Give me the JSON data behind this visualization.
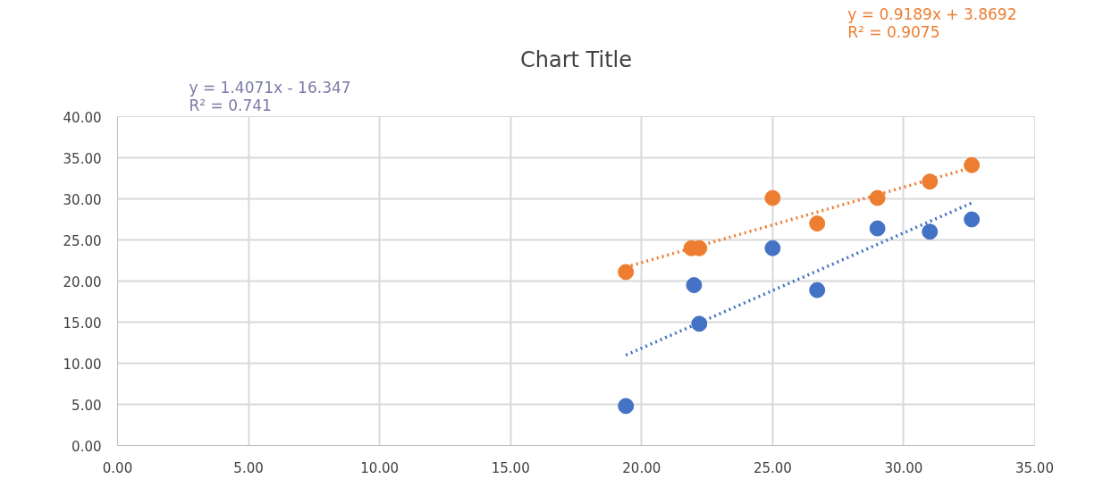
{
  "chart_data": {
    "type": "scatter",
    "title": "Chart Title",
    "annotations": [
      "y = 1.4071x - 16.347\nR² = 0.741",
      "y = 0.9189x + 3.8692\nR² = 0.9075"
    ],
    "series": [
      {
        "color": "#4472c4",
        "x": [
          19.4,
          22.0,
          22.2,
          25.0,
          26.7,
          29.0,
          31.0,
          32.6
        ],
        "values": [
          4.8,
          19.5,
          14.8,
          24.0,
          18.9,
          26.4,
          26.0,
          27.5
        ]
      },
      {
        "color": "#ed7d31",
        "x": [
          19.4,
          21.9,
          22.2,
          25.0,
          26.7,
          29.0,
          31.0,
          32.6
        ],
        "values": [
          21.1,
          24.0,
          24.0,
          30.1,
          27.0,
          30.1,
          32.1,
          34.1
        ]
      },
      {
        "type": "line",
        "color": "#4472c4",
        "line_style": "dotted",
        "marker": "none",
        "x": [
          19.4,
          32.6
        ],
        "values": [
          11.0,
          29.5
        ]
      },
      {
        "type": "line",
        "color": "#ed7d31",
        "line_style": "dotted",
        "marker": "none",
        "x": [
          19.4,
          32.6
        ],
        "values": [
          21.7,
          33.8
        ]
      }
    ],
    "marker": "circle",
    "grid": true,
    "xlim": [
      0,
      35
    ],
    "ylim": [
      0,
      40
    ],
    "xticks": [
      {
        "value": 0,
        "label": "0.00"
      },
      {
        "value": 5,
        "label": "5.00"
      },
      {
        "value": 10,
        "label": "10.00"
      },
      {
        "value": 15,
        "label": "15.00"
      },
      {
        "value": 20,
        "label": "20.00"
      },
      {
        "value": 25,
        "label": "25.00"
      },
      {
        "value": 30,
        "label": "30.00"
      },
      {
        "value": 35,
        "label": "35.00"
      }
    ],
    "yticks": [
      {
        "value": 0,
        "label": "0.00"
      },
      {
        "value": 5,
        "label": "5.00"
      },
      {
        "value": 10,
        "label": "10.00"
      },
      {
        "value": 15,
        "label": "15.00"
      },
      {
        "value": 20,
        "label": "20.00"
      },
      {
        "value": 25,
        "label": "25.00"
      },
      {
        "value": 30,
        "label": "30.00"
      },
      {
        "value": 35,
        "label": "35.00"
      },
      {
        "value": 40,
        "label": "40.00"
      }
    ]
  }
}
